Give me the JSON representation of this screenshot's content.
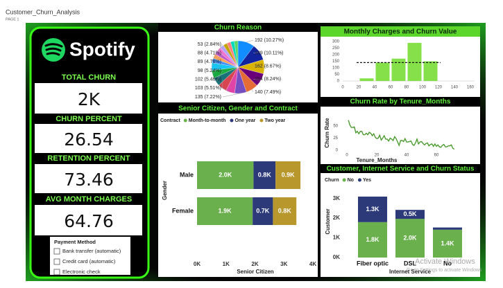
{
  "header": {
    "title": "Customer_Churn_Analysis",
    "page": "PAGE 1"
  },
  "brand": "Spotify",
  "kpis": [
    {
      "label": "TOTAL CHURN",
      "value": "2K"
    },
    {
      "label": "CHURN PERCENT",
      "value": 26.54
    },
    {
      "label": "RETENTION PERCENT",
      "value": 73.46
    },
    {
      "label": "AVG MONTH CHARGES",
      "value": 64.76
    }
  ],
  "slicer": {
    "title": "Payment Method",
    "items": [
      "Bank transfer (automatic)",
      "Credit card (automatic)",
      "Electronic check"
    ]
  },
  "chart_data": [
    {
      "type": "pie",
      "title": "Churn Reason",
      "values": [
        192,
        189,
        162,
        154,
        140,
        135,
        103,
        102,
        98,
        89,
        88,
        53,
        50,
        48,
        46,
        46,
        45,
        44,
        43,
        42
      ],
      "value_labels": [
        "192 (10.27%)",
        "189 (10.11%)",
        "162 (8.67%)",
        "154 (8.24%)",
        "140 (7.49%)",
        "135 (7.22%)",
        "103 (5.51%)",
        "102 (5.46%)",
        "98 (5.24%)",
        "89 (4.76%)",
        "88 (4.71%)",
        "53 (2.84%)",
        null,
        null,
        null,
        null,
        null,
        null,
        null,
        null
      ],
      "colors": [
        "#118dff",
        "#12239e",
        "#d9b300",
        "#6b007b",
        "#e66c37",
        "#744ec2",
        "#e044a7",
        "#d64550",
        "#197278",
        "#1aab40",
        "#15c6f4",
        "#4092ff",
        "#ffa058",
        "#be5dc9",
        "#f472d0",
        "#b5a1ff",
        "#c4a200",
        "#ff8080",
        "#00dbbc",
        "#5bd667"
      ]
    },
    {
      "type": "bar",
      "orientation": "horizontal",
      "stacked": true,
      "title": "Senior Citizen, Gender and Contract",
      "legend_title": "Contract",
      "categories": [
        "Male",
        "Female"
      ],
      "series": [
        {
          "name": "Month-to-month",
          "color": "#6ab04c",
          "values": [
            1950,
            1920
          ],
          "value_labels": [
            "2.0K",
            "1.9K"
          ]
        },
        {
          "name": "One year",
          "color": "#2d3a7a",
          "values": [
            760,
            700
          ],
          "value_labels": [
            "0.8K",
            "0.7K"
          ]
        },
        {
          "name": "Two year",
          "color": "#b8982c",
          "values": [
            860,
            810
          ],
          "value_labels": [
            "0.9K",
            "0.8K"
          ]
        }
      ],
      "xlim": [
        0,
        4000
      ],
      "xticks": [
        {
          "value": 0,
          "label": "0K"
        },
        {
          "value": 1000,
          "label": "1K"
        },
        {
          "value": 2000,
          "label": "2K"
        },
        {
          "value": 3000,
          "label": "3K"
        },
        {
          "value": 4000,
          "label": "4K"
        }
      ],
      "xlabel": "Senior Citizen",
      "ylabel": "Gender"
    },
    {
      "type": "histogram",
      "title": "Monthly Charges and Churn Value",
      "bins": [
        20,
        40,
        60,
        80,
        100,
        120
      ],
      "counts": [
        20,
        140,
        170,
        290,
        150
      ],
      "color": "#86e04a",
      "average_line": 140,
      "xlim": [
        0,
        165
      ],
      "ylim": [
        0,
        300
      ],
      "xticks": [
        0,
        20,
        40,
        60,
        80,
        100,
        120,
        140,
        160
      ],
      "yticks": [
        0,
        50,
        100,
        150,
        200,
        250,
        300
      ]
    },
    {
      "type": "line",
      "title": "Churn Rate by Tenure_Months",
      "color": "#4a9a2f",
      "x": [
        1,
        2,
        3,
        4,
        5,
        6,
        7,
        8,
        9,
        10,
        11,
        12,
        13,
        14,
        15,
        16,
        17,
        18,
        19,
        20,
        21,
        22,
        23,
        24,
        25,
        26,
        27,
        28,
        29,
        30,
        31,
        32,
        33,
        34,
        35,
        36,
        37,
        38,
        39,
        40,
        41,
        42,
        43,
        44,
        45,
        46,
        47,
        48,
        49,
        50,
        51,
        52,
        53,
        54,
        55,
        56,
        57,
        58,
        59,
        60,
        61,
        62,
        63,
        64,
        65,
        66,
        67,
        68,
        69,
        70,
        71,
        72
      ],
      "values": [
        62,
        52,
        47,
        47,
        48,
        36,
        39,
        34,
        39,
        39,
        32,
        32,
        35,
        32,
        37,
        35,
        30,
        34,
        27,
        24,
        25,
        31,
        21,
        25,
        30,
        23,
        23,
        19,
        25,
        23,
        20,
        28,
        24,
        17,
        10,
        20,
        20,
        18,
        24,
        17,
        17,
        18,
        19,
        12,
        10,
        15,
        23,
        13,
        17,
        18,
        14,
        11,
        14,
        15,
        9,
        12,
        13,
        8,
        13,
        8,
        11,
        7,
        6,
        10,
        12,
        7,
        7,
        9,
        9,
        11,
        4,
        2
      ],
      "xlim": [
        0,
        80
      ],
      "ylim": [
        0,
        70
      ],
      "xticks": [
        0,
        20,
        40,
        60
      ],
      "yticks": [
        0,
        25,
        50
      ],
      "xlabel": "Tenure_Months",
      "ylabel": "Churn Rate"
    },
    {
      "type": "bar",
      "orientation": "vertical",
      "stacked": true,
      "title": "Customer, Internet Service and Churn Status",
      "legend_title": "Churn",
      "categories": [
        "Fiber optic",
        "DSL",
        "No"
      ],
      "series": [
        {
          "name": "No",
          "color": "#6ab04c",
          "values": [
            1799,
            1962,
            1413
          ],
          "value_labels": [
            "1.8K",
            "2.0K",
            "1.4K"
          ]
        },
        {
          "name": "Yes",
          "color": "#2d3a7a",
          "values": [
            1297,
            459,
            113
          ],
          "value_labels": [
            "1.3K",
            "0.5K",
            null
          ]
        }
      ],
      "ylim": [
        0,
        3200
      ],
      "yticks": [
        {
          "value": 0,
          "label": "0K"
        },
        {
          "value": 1000,
          "label": "1K"
        },
        {
          "value": 2000,
          "label": "2K"
        },
        {
          "value": 3000,
          "label": "3K"
        }
      ],
      "xlabel": "Internet Service",
      "ylabel": "Customer"
    }
  ],
  "watermark": {
    "title": "Activate Windows",
    "text": "Go to Settings to activate Windows"
  }
}
